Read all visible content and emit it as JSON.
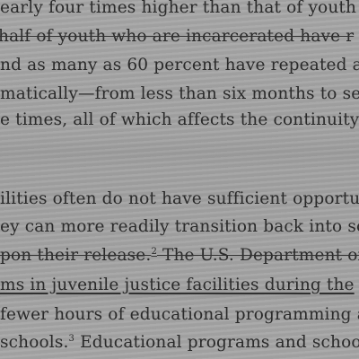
{
  "paragraph_1": {
    "lines": [
      "early four times higher than that of youth",
      "half of youth who are incarcerated have r",
      "nd as many as 60 percent have repeated a",
      "matically—from less than six months to se",
      "e times, all of which affects the continuity"
    ]
  },
  "paragraph_2": {
    "lines": [
      "ilities often do not have sufficient opportun",
      "ey can more readily transition back into sc",
      "pon their release.",
      " The U.S. Department of",
      "ms in juvenile justice facilities during the",
      "fewer hours of educational programming a",
      "schools.",
      " Educational programs and school"
    ],
    "footnote_1": "2",
    "footnote_2": "3"
  }
}
